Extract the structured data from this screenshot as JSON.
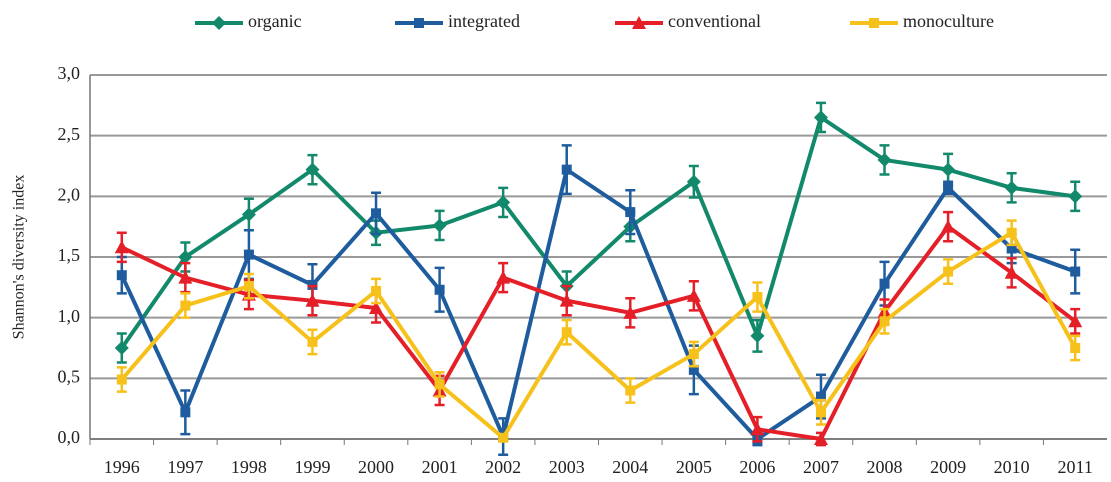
{
  "chart_data": {
    "type": "line",
    "y_label": "Shannon's diversity index",
    "categories": [
      "1996",
      "1997",
      "1998",
      "1999",
      "2000",
      "2001",
      "2002",
      "2003",
      "2004",
      "2005",
      "2006",
      "2007",
      "2008",
      "2009",
      "2010",
      "2011"
    ],
    "series": [
      {
        "name": "organic",
        "color": "#13896b",
        "marker": "diamond",
        "values": [
          0.75,
          1.5,
          1.85,
          2.22,
          1.7,
          1.76,
          1.95,
          1.26,
          1.75,
          2.12,
          0.85,
          2.65,
          2.3,
          2.22,
          2.07,
          2.0
        ],
        "errors": [
          0.12,
          0.12,
          0.13,
          0.12,
          0.1,
          0.12,
          0.12,
          0.12,
          0.12,
          0.13,
          0.13,
          0.12,
          0.12,
          0.13,
          0.12,
          0.12
        ]
      },
      {
        "name": "integrated",
        "color": "#1e5c9e",
        "marker": "square",
        "values": [
          1.35,
          0.22,
          1.52,
          1.27,
          1.86,
          1.23,
          0.02,
          2.22,
          1.87,
          0.57,
          0.0,
          0.35,
          1.28,
          2.07,
          1.57,
          1.38
        ],
        "errors": [
          0.15,
          0.18,
          0.2,
          0.17,
          0.17,
          0.18,
          0.15,
          0.2,
          0.18,
          0.2,
          0.05,
          0.18,
          0.18,
          0.05,
          0.12,
          0.18
        ]
      },
      {
        "name": "conventional",
        "color": "#e41f27",
        "marker": "triangle",
        "values": [
          1.58,
          1.33,
          1.19,
          1.14,
          1.08,
          0.4,
          1.33,
          1.14,
          1.04,
          1.18,
          0.08,
          0.0,
          1.05,
          1.75,
          1.37,
          0.97
        ],
        "errors": [
          0.12,
          0.12,
          0.12,
          0.12,
          0.12,
          0.12,
          0.12,
          0.12,
          0.12,
          0.12,
          0.1,
          0.05,
          0.1,
          0.12,
          0.12,
          0.1
        ]
      },
      {
        "name": "monoculture",
        "color": "#f7c11c",
        "marker": "square",
        "values": [
          0.49,
          1.1,
          1.26,
          0.8,
          1.22,
          0.45,
          0.01,
          0.88,
          0.4,
          0.7,
          1.17,
          0.22,
          0.97,
          1.38,
          1.7,
          0.75
        ],
        "errors": [
          0.1,
          0.1,
          0.1,
          0.1,
          0.1,
          0.1,
          0.02,
          0.1,
          0.1,
          0.1,
          0.12,
          0.1,
          0.1,
          0.1,
          0.1,
          0.1
        ]
      }
    ],
    "ylim": [
      0,
      3
    ],
    "yticks": [
      {
        "value": 0,
        "label": "0,0"
      },
      {
        "value": 0.5,
        "label": "0,5"
      },
      {
        "value": 1,
        "label": "1,0"
      },
      {
        "value": 1.5,
        "label": "1,5"
      },
      {
        "value": 2,
        "label": "2,0"
      },
      {
        "value": 2.5,
        "label": "2,5"
      },
      {
        "value": 3,
        "label": "3,0"
      }
    ],
    "grid": true,
    "legend": "top"
  }
}
